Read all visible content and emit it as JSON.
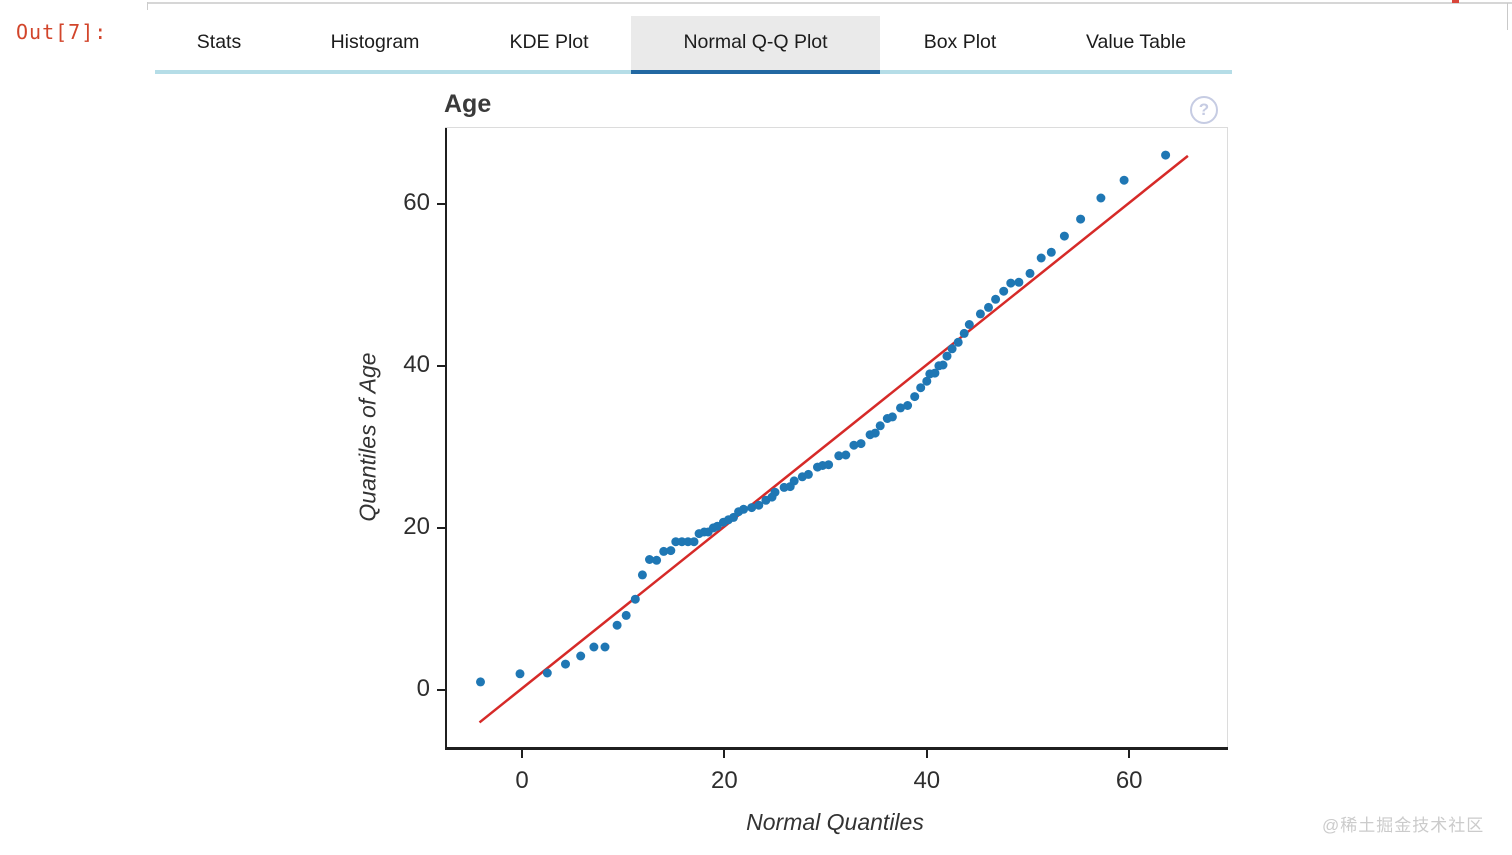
{
  "output_prompt": {
    "label": "Out[7]:"
  },
  "tabs": {
    "items": [
      {
        "label": "Stats"
      },
      {
        "label": "Histogram"
      },
      {
        "label": "KDE Plot"
      },
      {
        "label": "Normal Q-Q Plot"
      },
      {
        "label": "Box Plot"
      },
      {
        "label": "Value Table"
      }
    ],
    "active_index": 3
  },
  "chart_header": {
    "title": "Age",
    "help_glyph": "?"
  },
  "watermark": {
    "label": "@稀土掘金技术社区"
  },
  "colors": {
    "accent_active_tab": "#2268a2",
    "tab_underline": "#b5dde7",
    "prompt": "#d2452b",
    "point": "#1f77b4",
    "reference_line": "#d62a28"
  },
  "chart_data": {
    "type": "scatter",
    "title": "Age",
    "xlabel": "Normal Quantiles",
    "ylabel": "Quantiles of Age",
    "xticks": [
      0,
      20,
      40,
      60
    ],
    "yticks": [
      0,
      20,
      40,
      60
    ],
    "xlim": [
      -7.6,
      69.8
    ],
    "ylim": [
      -7.3,
      69.3
    ],
    "grid": false,
    "legend": "none",
    "point_color": "#1f77b4",
    "reference_line": {
      "x1": -4.2,
      "y1": -4.0,
      "x2": 65.8,
      "y2": 65.9,
      "color": "#d62a28"
    },
    "points": [
      [
        -4.1,
        1.0
      ],
      [
        -0.2,
        2.0
      ],
      [
        2.5,
        2.1
      ],
      [
        4.3,
        3.2
      ],
      [
        5.8,
        4.2
      ],
      [
        7.1,
        5.3
      ],
      [
        8.2,
        5.3
      ],
      [
        9.4,
        8.0
      ],
      [
        10.3,
        9.2
      ],
      [
        11.2,
        11.2
      ],
      [
        11.9,
        14.2
      ],
      [
        12.6,
        16.1
      ],
      [
        13.3,
        16.0
      ],
      [
        14.0,
        17.1
      ],
      [
        14.7,
        17.2
      ],
      [
        15.2,
        18.3
      ],
      [
        15.8,
        18.3
      ],
      [
        16.4,
        18.3
      ],
      [
        17.0,
        18.3
      ],
      [
        17.5,
        19.3
      ],
      [
        18.0,
        19.5
      ],
      [
        18.4,
        19.5
      ],
      [
        18.9,
        20.0
      ],
      [
        19.3,
        20.2
      ],
      [
        19.9,
        20.7
      ],
      [
        20.4,
        21.0
      ],
      [
        20.9,
        21.3
      ],
      [
        21.4,
        22.0
      ],
      [
        21.9,
        22.3
      ],
      [
        22.7,
        22.5
      ],
      [
        23.4,
        22.8
      ],
      [
        24.1,
        23.4
      ],
      [
        24.7,
        23.8
      ],
      [
        25.0,
        24.4
      ],
      [
        25.9,
        25.0
      ],
      [
        26.5,
        25.1
      ],
      [
        26.9,
        25.8
      ],
      [
        27.7,
        26.3
      ],
      [
        28.3,
        26.6
      ],
      [
        29.2,
        27.5
      ],
      [
        29.7,
        27.7
      ],
      [
        30.3,
        27.8
      ],
      [
        31.3,
        28.9
      ],
      [
        32.0,
        29.0
      ],
      [
        32.8,
        30.2
      ],
      [
        33.5,
        30.4
      ],
      [
        34.4,
        31.5
      ],
      [
        34.9,
        31.7
      ],
      [
        35.4,
        32.6
      ],
      [
        36.1,
        33.5
      ],
      [
        36.6,
        33.7
      ],
      [
        37.4,
        34.8
      ],
      [
        38.1,
        35.1
      ],
      [
        38.8,
        36.2
      ],
      [
        39.4,
        37.3
      ],
      [
        40.0,
        38.1
      ],
      [
        40.3,
        39.0
      ],
      [
        40.8,
        39.1
      ],
      [
        41.2,
        40.0
      ],
      [
        41.6,
        40.1
      ],
      [
        42.0,
        41.2
      ],
      [
        42.5,
        42.1
      ],
      [
        43.1,
        42.9
      ],
      [
        43.7,
        44.0
      ],
      [
        44.2,
        45.1
      ],
      [
        45.3,
        46.4
      ],
      [
        46.1,
        47.2
      ],
      [
        46.8,
        48.2
      ],
      [
        47.6,
        49.2
      ],
      [
        48.3,
        50.2
      ],
      [
        49.1,
        50.3
      ],
      [
        50.2,
        51.4
      ],
      [
        51.3,
        53.3
      ],
      [
        52.3,
        54.0
      ],
      [
        53.6,
        56.0
      ],
      [
        55.2,
        58.1
      ],
      [
        57.2,
        60.7
      ],
      [
        59.5,
        62.9
      ],
      [
        63.6,
        66.0
      ]
    ]
  }
}
